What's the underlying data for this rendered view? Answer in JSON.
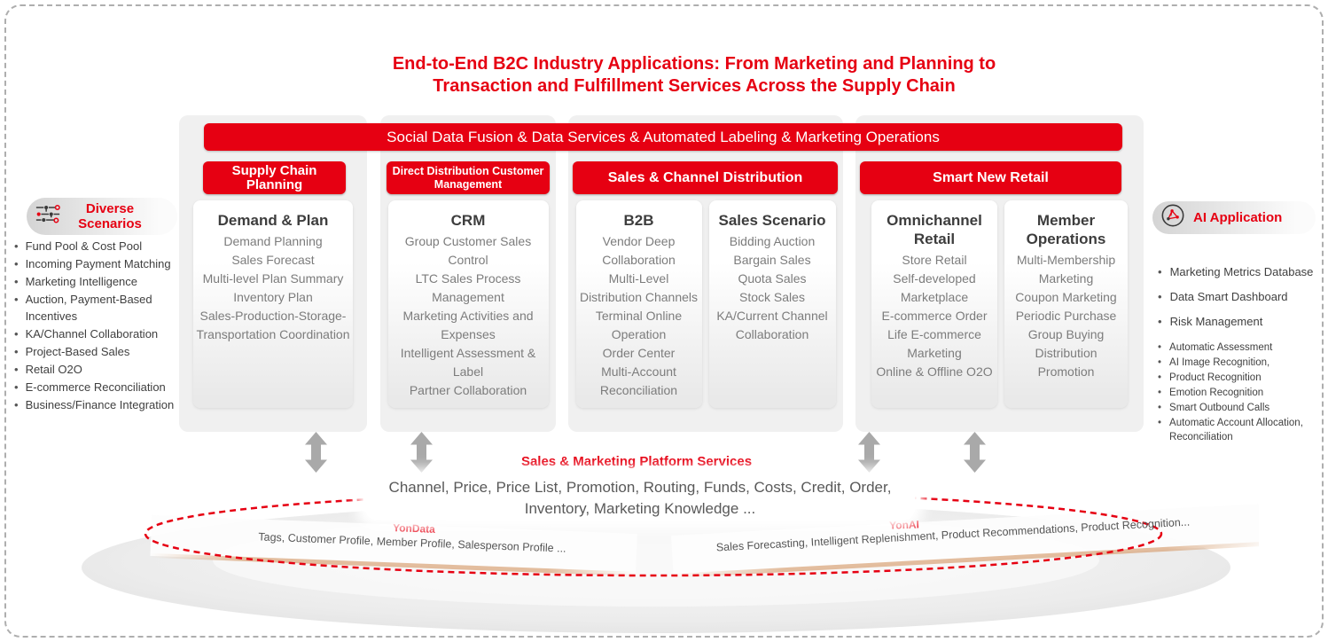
{
  "title": {
    "line1": "End-to-End B2C Industry Applications: From Marketing and Planning to",
    "line2": "Transaction and Fulfillment Services Across the Supply Chain"
  },
  "banner": {
    "label": "Social Data Fusion & Data Services & Automated Labeling & Marketing Operations"
  },
  "left_panel": {
    "title": "Diverse Scenarios",
    "icon": "circuit-network-icon",
    "items": [
      "Fund Pool & Cost Pool",
      "Incoming Payment Matching",
      "Marketing Intelligence",
      "Auction, Payment-Based Incentives",
      "KA/Channel Collaboration",
      "Project-Based Sales",
      "Retail O2O",
      "E-commerce Reconciliation",
      "Business/Finance Integration"
    ]
  },
  "right_panel": {
    "title": "AI Application",
    "icon": "ai-network-icon",
    "items_primary": [
      "Marketing Metrics Database",
      "Data Smart Dashboard",
      "Risk Management"
    ],
    "items_secondary": [
      "Automatic Assessment",
      "AI Image Recognition,",
      "Product Recognition",
      "Emotion Recognition",
      "Smart Outbound Calls",
      "Automatic Account Allocation, Reconciliation"
    ]
  },
  "columns": [
    {
      "header": "Supply Chain Planning",
      "cards": [
        {
          "title": "Demand & Plan",
          "items": [
            "Demand Planning",
            "Sales Forecast",
            "Multi-level Plan Summary",
            "Inventory Plan",
            "Sales-Production-Storage-Transportation Coordination"
          ]
        }
      ]
    },
    {
      "header": "Direct Distribution Customer Management",
      "cards": [
        {
          "title": "CRM",
          "items": [
            "Group Customer Sales Control",
            "LTC Sales Process Management",
            "Marketing Activities and Expenses",
            "Intelligent Assessment & Label",
            "Partner Collaboration"
          ]
        }
      ]
    },
    {
      "header": "Sales & Channel Distribution",
      "cards": [
        {
          "title": "B2B",
          "items": [
            "Vendor Deep Collaboration",
            "Multi-Level Distribution Channels",
            "Terminal Online Operation",
            "Order Center",
            "Multi-Account Reconciliation"
          ]
        },
        {
          "title": "Sales Scenario",
          "items": [
            "Bidding Auction",
            "Bargain Sales",
            "Quota Sales",
            "Stock Sales",
            "KA/Current Channel Collaboration"
          ]
        }
      ]
    },
    {
      "header": "Smart New Retail",
      "cards": [
        {
          "title": "Omnichannel Retail",
          "items": [
            "Store Retail",
            "Self-developed Marketplace",
            "E-commerce Order",
            "Life E-commerce Marketing",
            "Online & Offline O2O"
          ]
        },
        {
          "title": "Member Operations",
          "items": [
            "Multi-Membership Marketing",
            "Coupon Marketing",
            "Periodic Purchase",
            "Group Buying",
            "Distribution Promotion"
          ]
        }
      ]
    }
  ],
  "platform": {
    "title": "Sales & Marketing Platform Services",
    "description": "Channel, Price, Price List, Promotion, Routing, Funds, Costs, Credit, Order, Inventory, Marketing Knowledge ..."
  },
  "foundation": {
    "left": {
      "label": "YonData",
      "text": "Tags, Customer Profile, Member Profile, Salesperson Profile ..."
    },
    "right": {
      "label": "YonAI",
      "text": "Sales Forecasting, Intelligent Replenishment, Product Recommendations, Product Recognition..."
    }
  },
  "icons": {
    "arrow": "double-vertical-arrow"
  },
  "colors": {
    "brand_red": "#e60012",
    "card_title": "#3d3d3d",
    "card_item": "#7c7c7c",
    "panel_text": "#3f3f3f",
    "arrow_gray": "#a9a9a9"
  }
}
